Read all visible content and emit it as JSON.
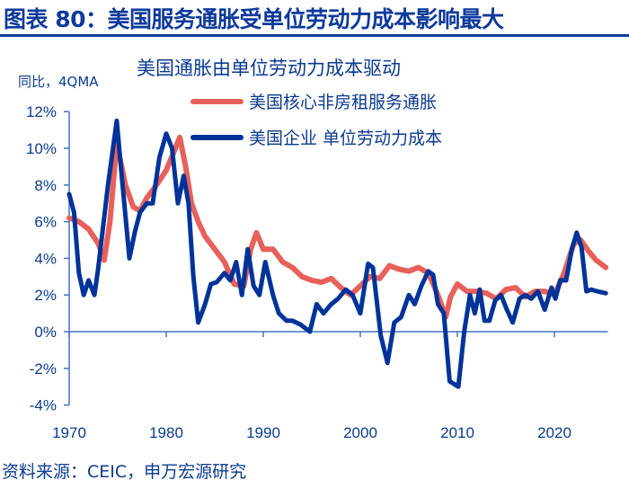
{
  "header": {
    "title": "图表 80：美国服务通胀受单位劳动力成本影响最大"
  },
  "footer": {
    "source": "资料来源：CEIC，申万宏源研究"
  },
  "chart_data": {
    "type": "line",
    "title": "美国通胀由单位劳动力成本驱动",
    "ylabel": "同比，4QMA",
    "xlim": [
      1970,
      2025.5
    ],
    "ylim": [
      -4,
      12
    ],
    "xticks": [
      "1970",
      "1980",
      "1990",
      "2000",
      "2010",
      "2020"
    ],
    "yticks": [
      "-4%",
      "-2%",
      "0%",
      "2%",
      "4%",
      "6%",
      "8%",
      "10%",
      "12%"
    ],
    "legend": "top-right",
    "grid": false,
    "series": [
      {
        "name": "美国核心非房租服务通胀",
        "color": "#e8605a",
        "x": [
          1970,
          1971,
          1972,
          1973,
          1973.6,
          1974.2,
          1974.9,
          1975.8,
          1976.6,
          1977.3,
          1978,
          1979,
          1980,
          1981.4,
          1982,
          1982.6,
          1983.3,
          1984,
          1985,
          1986,
          1987,
          1988,
          1988.7,
          1989.3,
          1990,
          1991,
          1992,
          1993,
          1994,
          1995,
          1996,
          1997,
          1998,
          1999,
          2000,
          2001,
          2002,
          2003,
          2004,
          2005,
          2006,
          2007,
          2008,
          2008.8,
          2009.3,
          2010,
          2011,
          2012,
          2013,
          2014,
          2015,
          2016,
          2017,
          2018,
          2019,
          2020,
          2021,
          2022,
          2022.7,
          2023.5,
          2024.3,
          2025.3
        ],
        "y": [
          6.2,
          6.0,
          5.6,
          4.8,
          3.9,
          6.0,
          10.3,
          8.0,
          6.8,
          6.6,
          7.3,
          8.0,
          8.8,
          10.6,
          9.0,
          7.0,
          6.0,
          5.2,
          4.5,
          3.8,
          2.6,
          2.5,
          4.5,
          5.4,
          4.5,
          4.5,
          3.8,
          3.5,
          3.0,
          2.8,
          2.7,
          2.9,
          2.4,
          2.0,
          2.5,
          3.0,
          2.9,
          3.6,
          3.4,
          3.3,
          3.5,
          3.2,
          2.0,
          0.8,
          1.9,
          2.6,
          2.2,
          2.2,
          2.1,
          1.8,
          2.3,
          2.4,
          1.9,
          2.2,
          2.2,
          2.0,
          3.2,
          4.8,
          5.0,
          4.4,
          3.9,
          3.5
        ]
      },
      {
        "name": "美国企业 单位劳动力成本",
        "color": "#003399",
        "x": [
          1970,
          1970.5,
          1971,
          1971.5,
          1972,
          1972.6,
          1973,
          1974,
          1974.9,
          1975.5,
          1976.2,
          1976.8,
          1977.3,
          1978,
          1978.6,
          1979.3,
          1980,
          1980.6,
          1981.2,
          1981.8,
          1982.3,
          1982.8,
          1983.3,
          1984,
          1984.6,
          1985.2,
          1986,
          1986.6,
          1987.2,
          1987.8,
          1988.4,
          1989,
          1989.6,
          1990.2,
          1991,
          1991.6,
          1992.4,
          1993,
          1993.8,
          1994.8,
          1995.5,
          1996.2,
          1997,
          1997.7,
          1998.5,
          1999.2,
          2000,
          2000.8,
          2001.3,
          2002.1,
          2002.8,
          2003.5,
          2004.2,
          2005,
          2005.6,
          2006.3,
          2007,
          2007.5,
          2008,
          2008.6,
          2009.2,
          2010.1,
          2010.7,
          2011.3,
          2011.8,
          2012.3,
          2012.8,
          2013.3,
          2013.9,
          2014.5,
          2015.1,
          2015.7,
          2016.4,
          2017,
          2017.6,
          2018.3,
          2019,
          2019.7,
          2020.1,
          2020.6,
          2021.2,
          2021.8,
          2022.3,
          2022.8,
          2023.3,
          2023.8,
          2024.4,
          2025.3
        ],
        "y": [
          7.5,
          6.5,
          3.2,
          2.0,
          2.8,
          2.0,
          3.5,
          8.0,
          11.5,
          8.0,
          4.0,
          5.5,
          6.5,
          7.0,
          7.0,
          9.5,
          10.8,
          10.0,
          7.0,
          8.5,
          7.0,
          3.0,
          0.5,
          1.5,
          2.6,
          2.7,
          3.2,
          2.8,
          3.8,
          2.0,
          4.5,
          2.5,
          2.0,
          3.8,
          2.0,
          1.0,
          0.6,
          0.6,
          0.4,
          0.0,
          1.5,
          1.0,
          1.5,
          1.8,
          2.3,
          2.0,
          1.0,
          3.7,
          3.5,
          -0.2,
          -1.7,
          0.5,
          0.8,
          2.0,
          1.5,
          2.5,
          3.3,
          3.1,
          1.5,
          1.0,
          -2.7,
          -3.0,
          0.0,
          2.0,
          1.0,
          2.3,
          0.6,
          0.6,
          1.7,
          2.0,
          1.2,
          0.5,
          1.8,
          2.0,
          1.8,
          2.2,
          1.2,
          2.4,
          1.8,
          2.8,
          2.8,
          4.5,
          5.4,
          4.6,
          2.2,
          2.3,
          2.2,
          2.1
        ]
      }
    ]
  }
}
